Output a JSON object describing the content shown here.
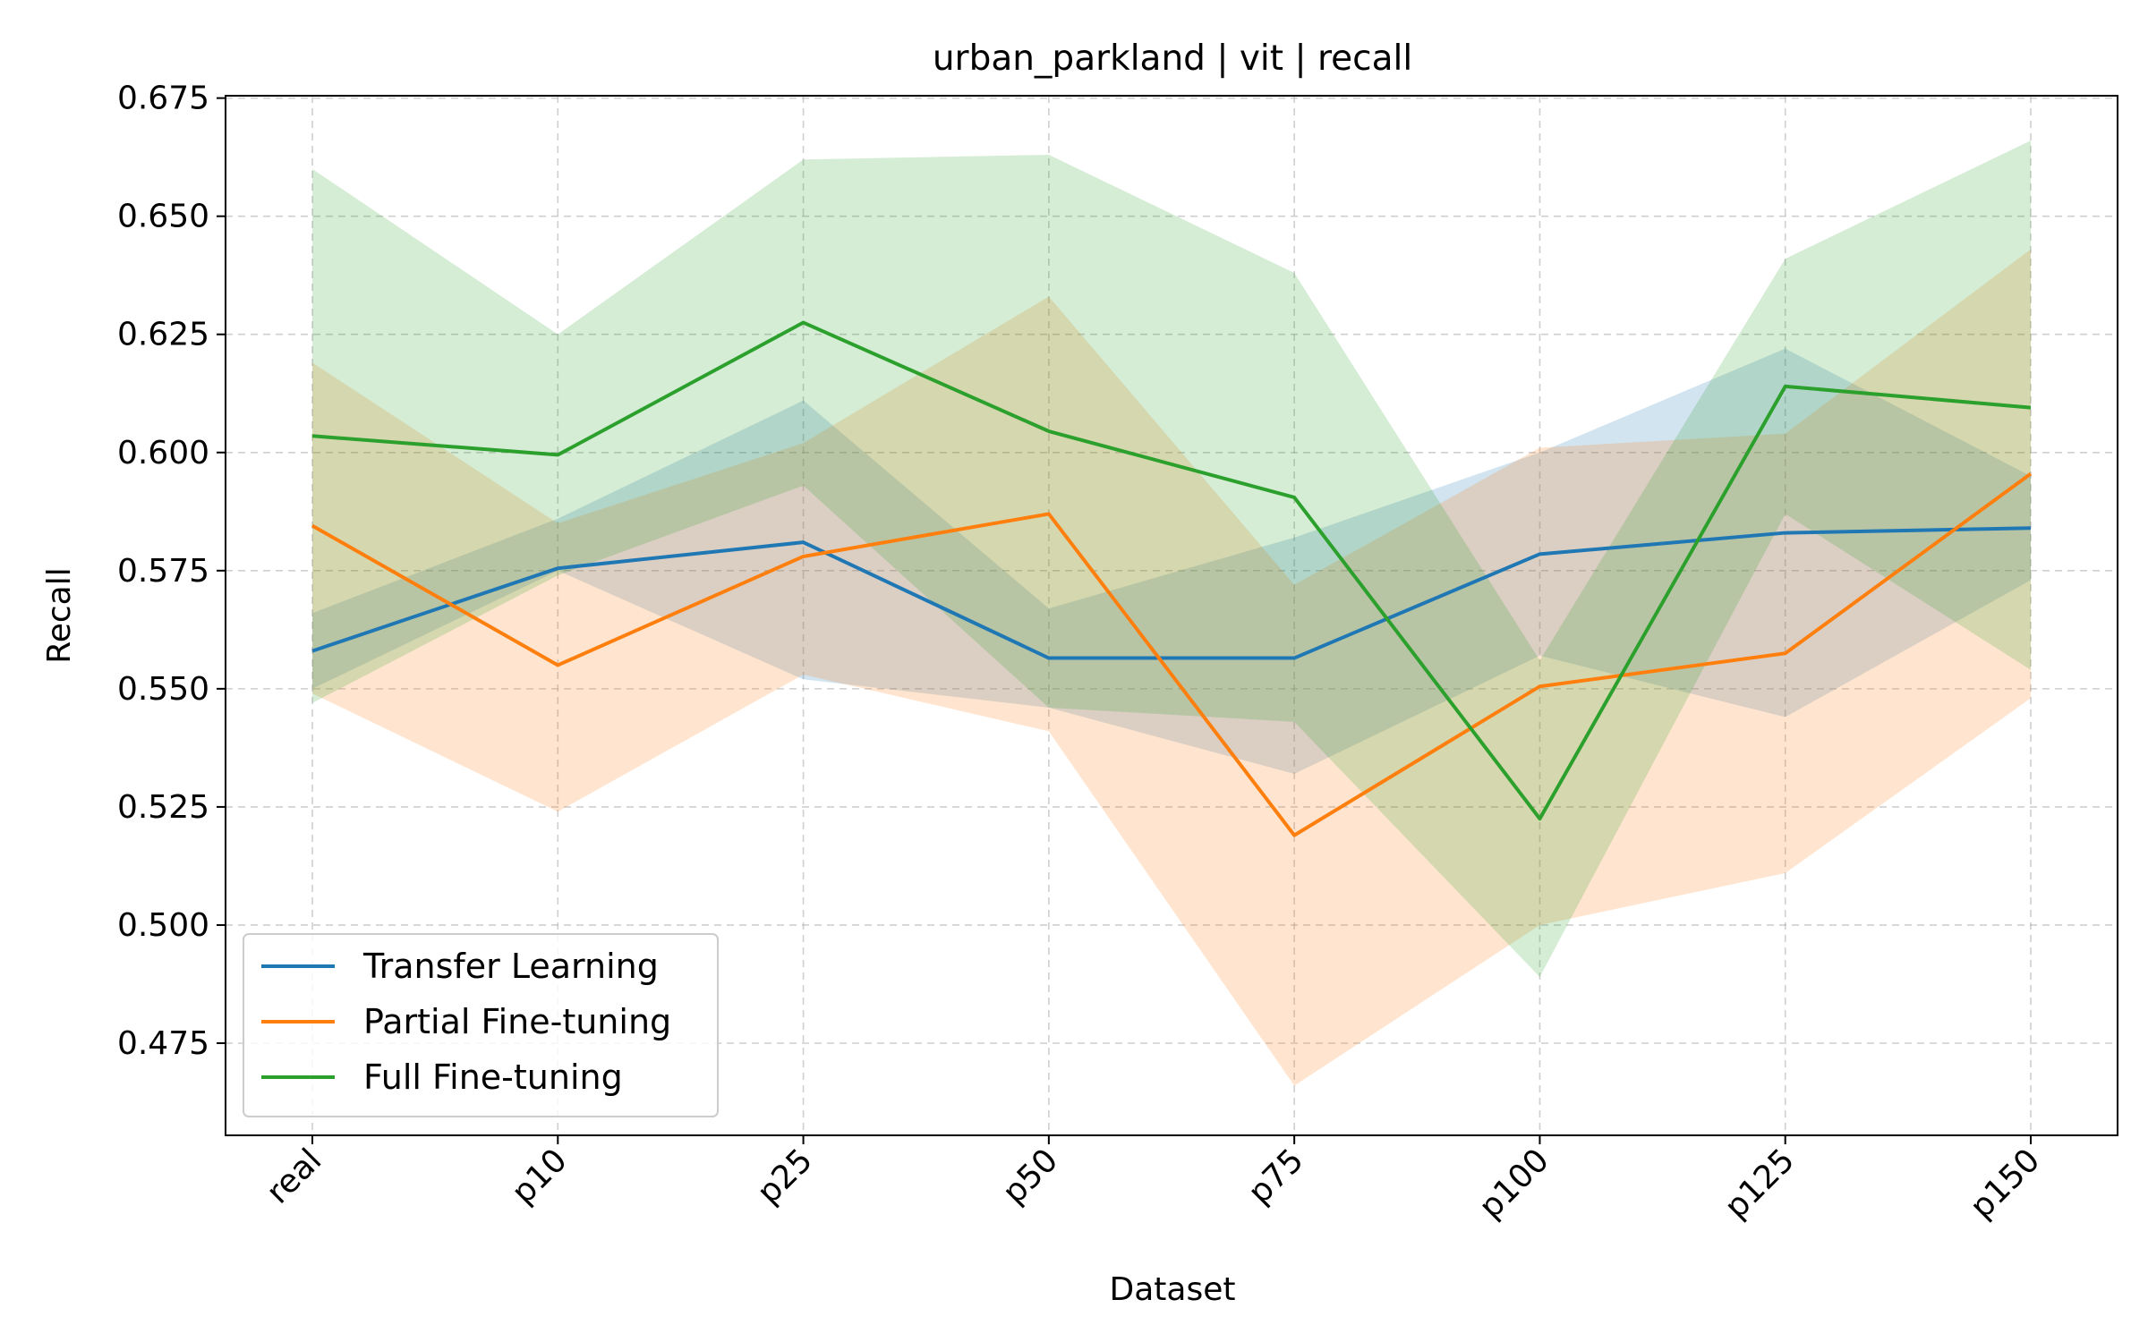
{
  "chart_data": {
    "type": "line",
    "title": "urban_parkland | vit | recall",
    "xlabel": "Dataset",
    "ylabel": "Recall",
    "categories": [
      "real",
      "p10",
      "p25",
      "p50",
      "p75",
      "p100",
      "p125",
      "p150"
    ],
    "ylim": [
      0.4555,
      0.6755
    ],
    "yticks": [
      0.475,
      0.5,
      0.525,
      0.55,
      0.575,
      0.6,
      0.625,
      0.65,
      0.675
    ],
    "ytick_labels": [
      "0.475",
      "0.500",
      "0.525",
      "0.550",
      "0.575",
      "0.600",
      "0.625",
      "0.650",
      "0.675"
    ],
    "grid": true,
    "legend_position": "lower-left",
    "series": [
      {
        "name": "Transfer Learning",
        "color": "#1f77b4",
        "values": [
          0.558,
          0.5755,
          0.581,
          0.5565,
          0.5565,
          0.5785,
          0.583,
          0.584
        ],
        "lower": [
          0.55,
          0.575,
          0.552,
          0.546,
          0.532,
          0.557,
          0.544,
          0.573
        ],
        "upper": [
          0.566,
          0.586,
          0.611,
          0.567,
          0.582,
          0.6,
          0.622,
          0.595
        ]
      },
      {
        "name": "Partial Fine-tuning",
        "color": "#ff7f0e",
        "values": [
          0.5845,
          0.555,
          0.578,
          0.587,
          0.519,
          0.5505,
          0.5575,
          0.5955
        ],
        "lower": [
          0.549,
          0.524,
          0.553,
          0.541,
          0.466,
          0.5,
          0.511,
          0.548
        ],
        "upper": [
          0.619,
          0.585,
          0.602,
          0.633,
          0.572,
          0.601,
          0.604,
          0.643
        ]
      },
      {
        "name": "Full Fine-tuning",
        "color": "#2ca02c",
        "values": [
          0.6035,
          0.5995,
          0.6275,
          0.6045,
          0.5905,
          0.5225,
          0.614,
          0.6095
        ],
        "lower": [
          0.547,
          0.574,
          0.593,
          0.546,
          0.543,
          0.489,
          0.587,
          0.554
        ],
        "upper": [
          0.66,
          0.625,
          0.662,
          0.663,
          0.638,
          0.556,
          0.641,
          0.666
        ]
      }
    ]
  }
}
